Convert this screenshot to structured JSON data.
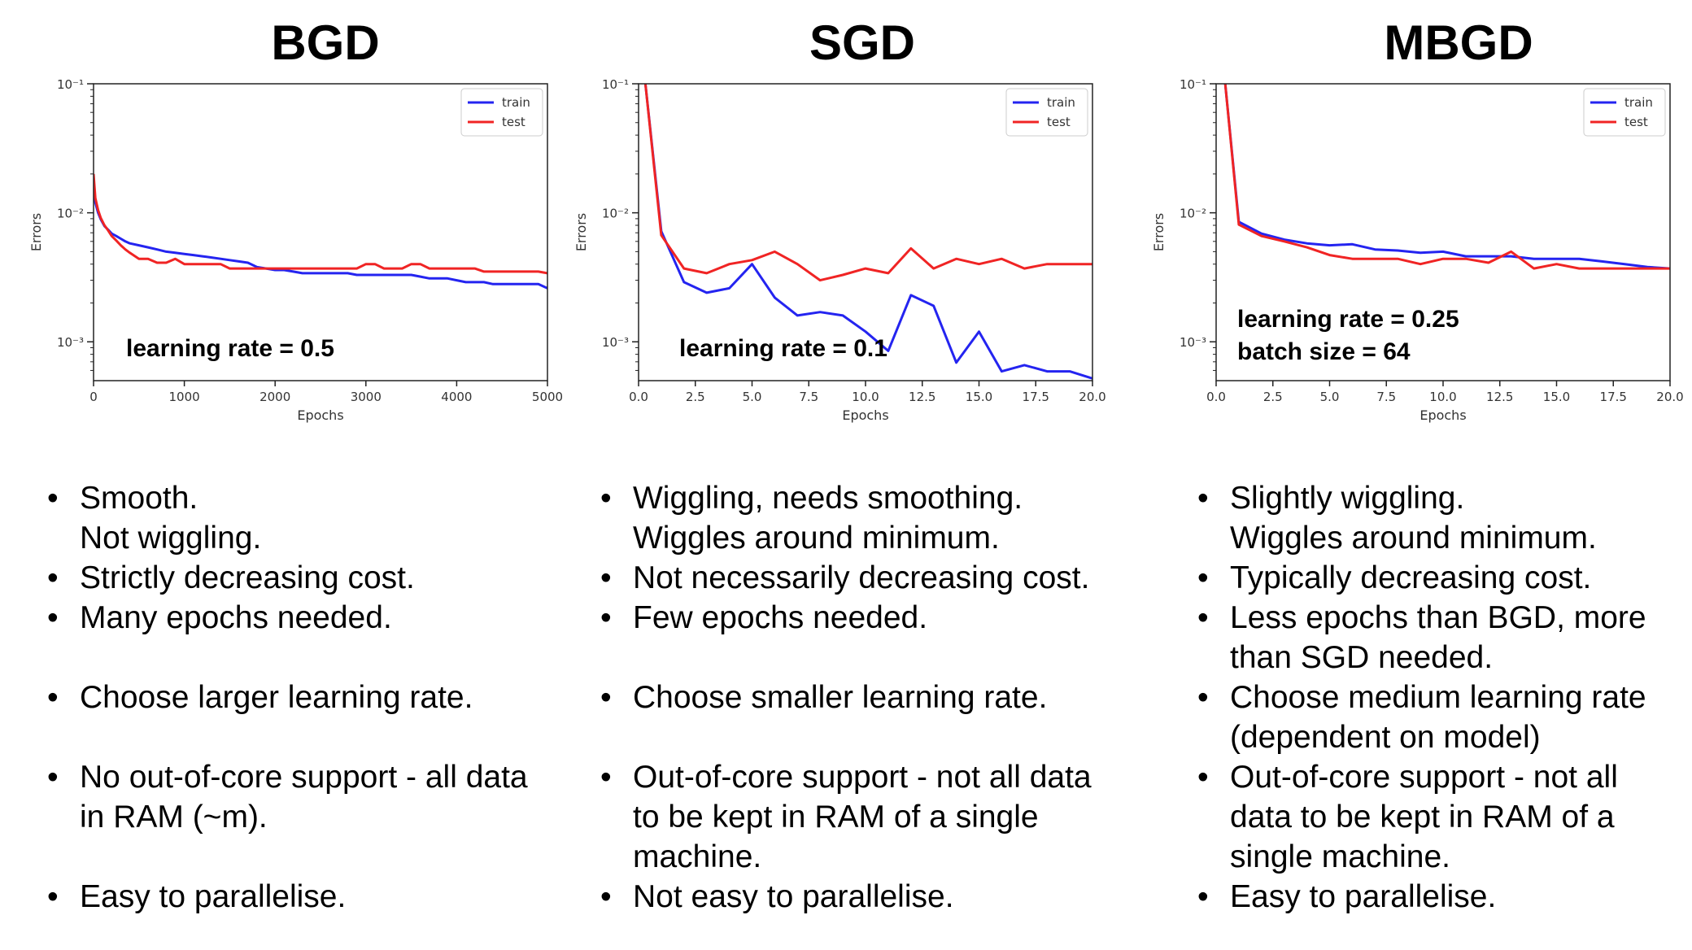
{
  "columns": [
    {
      "title": "BGD",
      "bullets": [
        {
          "lines": [
            "Smooth.",
            "Not wiggling."
          ]
        },
        {
          "lines": [
            "Strictly decreasing cost."
          ]
        },
        {
          "lines": [
            "Many epochs needed."
          ]
        },
        {
          "lines": [
            "Choose larger learning rate."
          ]
        },
        {
          "lines": [
            "No out-of-core support - all data",
            "in RAM (~m)."
          ]
        },
        {
          "lines": [
            "Easy to parallelise."
          ]
        }
      ]
    },
    {
      "title": "SGD",
      "bullets": [
        {
          "lines": [
            "Wiggling, needs smoothing.",
            "Wiggles around minimum."
          ]
        },
        {
          "lines": [
            "Not necessarily decreasing cost."
          ]
        },
        {
          "lines": [
            "Few epochs needed."
          ]
        },
        {
          "lines": [
            "Choose smaller learning rate."
          ]
        },
        {
          "lines": [
            "Out-of-core support - not all data",
            "to be kept in RAM of a single",
            "machine."
          ]
        },
        {
          "lines": [
            "Not easy to parallelise."
          ]
        }
      ]
    },
    {
      "title": "MBGD",
      "bullets": [
        {
          "lines": [
            "Slightly wiggling.",
            "Wiggles around minimum."
          ]
        },
        {
          "lines": [
            "Typically decreasing cost."
          ]
        },
        {
          "lines": [
            "Less epochs than BGD, more",
            "than SGD needed."
          ]
        },
        {
          "lines": [
            "Choose medium learning rate",
            "(dependent on model)"
          ]
        },
        {
          "lines": [
            "Out-of-core support - not all",
            "data to be kept in RAM of a",
            "single machine."
          ]
        },
        {
          "lines": [
            "Easy to parallelise."
          ]
        }
      ]
    }
  ],
  "chart_data": [
    {
      "type": "line",
      "xlabel": "Epochs",
      "ylabel": "Errors",
      "yscale": "log",
      "xlim": [
        0,
        5000
      ],
      "ylim": [
        0.0005,
        0.1
      ],
      "xticks": [
        0,
        1000,
        2000,
        3000,
        4000,
        5000
      ],
      "xtick_labels": [
        "0",
        "1000",
        "2000",
        "3000",
        "4000",
        "5000"
      ],
      "yticks": [
        0.001,
        0.01,
        0.1
      ],
      "ytick_labels": [
        "10⁻³",
        "10⁻²",
        "10⁻¹"
      ],
      "legend": "top-right",
      "annotations": [
        "learning rate = 0.5"
      ],
      "series": [
        {
          "name": "train",
          "color": "#2424f0",
          "x": [
            0,
            20,
            50,
            80,
            120,
            160,
            200,
            250,
            300,
            350,
            400,
            500,
            600,
            700,
            800,
            900,
            1000,
            1100,
            1200,
            1300,
            1400,
            1500,
            1600,
            1700,
            1800,
            1900,
            2000,
            2100,
            2200,
            2300,
            2400,
            2500,
            2600,
            2700,
            2800,
            2900,
            3000,
            3100,
            3200,
            3300,
            3400,
            3500,
            3600,
            3700,
            3800,
            3900,
            4000,
            4100,
            4200,
            4300,
            4400,
            4500,
            4600,
            4700,
            4800,
            4900,
            5000
          ],
          "y": [
            0.016,
            0.012,
            0.01,
            0.0089,
            0.0079,
            0.0074,
            0.0069,
            0.0066,
            0.0063,
            0.006,
            0.0058,
            0.0056,
            0.0054,
            0.0052,
            0.005,
            0.0049,
            0.0048,
            0.0047,
            0.0046,
            0.0045,
            0.0044,
            0.0043,
            0.0042,
            0.0041,
            0.0038,
            0.0037,
            0.0036,
            0.0036,
            0.0035,
            0.0034,
            0.0034,
            0.0034,
            0.0034,
            0.0034,
            0.0034,
            0.0033,
            0.0033,
            0.0033,
            0.0033,
            0.0033,
            0.0033,
            0.0033,
            0.0032,
            0.0031,
            0.0031,
            0.0031,
            0.003,
            0.0029,
            0.0029,
            0.0029,
            0.0028,
            0.0028,
            0.0028,
            0.0028,
            0.0028,
            0.0028,
            0.0026
          ]
        },
        {
          "name": "test",
          "color": "#f02424",
          "x": [
            0,
            20,
            50,
            80,
            120,
            160,
            200,
            250,
            300,
            350,
            400,
            500,
            600,
            700,
            800,
            900,
            1000,
            1100,
            1200,
            1300,
            1400,
            1500,
            1600,
            1700,
            1800,
            1900,
            2000,
            2100,
            2200,
            2300,
            2400,
            2500,
            2600,
            2700,
            2800,
            2900,
            3000,
            3100,
            3200,
            3300,
            3400,
            3500,
            3600,
            3700,
            3800,
            3900,
            4000,
            4100,
            4200,
            4300,
            4400,
            4500,
            4600,
            4700,
            4800,
            4900,
            5000
          ],
          "y": [
            0.02,
            0.013,
            0.0105,
            0.0091,
            0.008,
            0.0073,
            0.0066,
            0.0061,
            0.0056,
            0.0052,
            0.0049,
            0.0044,
            0.0044,
            0.0041,
            0.0041,
            0.0044,
            0.004,
            0.004,
            0.004,
            0.004,
            0.004,
            0.0037,
            0.0037,
            0.0037,
            0.0037,
            0.0037,
            0.0037,
            0.0037,
            0.0037,
            0.0037,
            0.0037,
            0.0037,
            0.0037,
            0.0037,
            0.0037,
            0.0037,
            0.004,
            0.004,
            0.0037,
            0.0037,
            0.0037,
            0.004,
            0.004,
            0.0037,
            0.0037,
            0.0037,
            0.0037,
            0.0037,
            0.0037,
            0.0035,
            0.0035,
            0.0035,
            0.0035,
            0.0035,
            0.0035,
            0.0035,
            0.0034
          ]
        }
      ]
    },
    {
      "type": "line",
      "xlabel": "Epochs",
      "ylabel": "Errors",
      "yscale": "log",
      "xlim": [
        0,
        20
      ],
      "ylim": [
        0.0005,
        0.1
      ],
      "xticks": [
        0,
        2.5,
        5,
        7.5,
        10,
        12.5,
        15,
        17.5,
        20
      ],
      "xtick_labels": [
        "0.0",
        "2.5",
        "5.0",
        "7.5",
        "10.0",
        "12.5",
        "15.0",
        "17.5",
        "20.0"
      ],
      "yticks": [
        0.001,
        0.01,
        0.1
      ],
      "ytick_labels": [
        "10⁻³",
        "10⁻²",
        "10⁻¹"
      ],
      "legend": "top-right",
      "annotations": [
        "learning rate = 0.1"
      ],
      "series": [
        {
          "name": "train",
          "color": "#2424f0",
          "x": [
            0.3,
            1,
            2,
            3,
            4,
            5,
            6,
            7,
            8,
            9,
            10,
            11,
            12,
            13,
            14,
            15,
            16,
            17,
            18,
            19,
            20
          ],
          "y": [
            0.1,
            0.0072,
            0.0029,
            0.0024,
            0.0026,
            0.004,
            0.0022,
            0.0016,
            0.0017,
            0.0016,
            0.0012,
            0.00085,
            0.0023,
            0.0019,
            0.00069,
            0.0012,
            0.00059,
            0.00066,
            0.00059,
            0.00059,
            0.00052
          ]
        },
        {
          "name": "test",
          "color": "#f02424",
          "x": [
            0.3,
            1,
            2,
            3,
            4,
            5,
            6,
            7,
            8,
            9,
            10,
            11,
            12,
            13,
            14,
            15,
            16,
            17,
            18,
            19,
            20
          ],
          "y": [
            0.1,
            0.0067,
            0.0037,
            0.0034,
            0.004,
            0.0043,
            0.005,
            0.004,
            0.003,
            0.0033,
            0.0037,
            0.0034,
            0.0053,
            0.0037,
            0.0044,
            0.004,
            0.0044,
            0.0037,
            0.004,
            0.004,
            0.004
          ]
        }
      ]
    },
    {
      "type": "line",
      "xlabel": "Epochs",
      "ylabel": "Errors",
      "yscale": "log",
      "xlim": [
        0,
        20
      ],
      "ylim": [
        0.0005,
        0.1
      ],
      "xticks": [
        0,
        2.5,
        5,
        7.5,
        10,
        12.5,
        15,
        17.5,
        20
      ],
      "xtick_labels": [
        "0.0",
        "2.5",
        "5.0",
        "7.5",
        "10.0",
        "12.5",
        "15.0",
        "17.5",
        "20.0"
      ],
      "yticks": [
        0.001,
        0.01,
        0.1
      ],
      "ytick_labels": [
        "10⁻³",
        "10⁻²",
        "10⁻¹"
      ],
      "legend": "top-right",
      "annotations": [
        "learning rate = 0.25",
        "batch size = 64"
      ],
      "series": [
        {
          "name": "train",
          "color": "#2424f0",
          "x": [
            0.4,
            1,
            2,
            3,
            4,
            5,
            6,
            7,
            8,
            9,
            10,
            11,
            12,
            13,
            14,
            15,
            16,
            17,
            18,
            19,
            20
          ],
          "y": [
            0.1,
            0.0085,
            0.0069,
            0.0062,
            0.0058,
            0.0056,
            0.0057,
            0.0052,
            0.0051,
            0.0049,
            0.005,
            0.0046,
            0.0046,
            0.0046,
            0.0044,
            0.0044,
            0.0044,
            0.0042,
            0.004,
            0.0038,
            0.0037
          ]
        },
        {
          "name": "test",
          "color": "#f02424",
          "x": [
            0.4,
            1,
            2,
            3,
            4,
            5,
            6,
            7,
            8,
            9,
            10,
            11,
            12,
            13,
            14,
            15,
            16,
            17,
            18,
            19,
            20
          ],
          "y": [
            0.1,
            0.0081,
            0.0066,
            0.006,
            0.0054,
            0.0047,
            0.0044,
            0.0044,
            0.0044,
            0.004,
            0.0044,
            0.0044,
            0.0041,
            0.005,
            0.0037,
            0.004,
            0.0037,
            0.0037,
            0.0037,
            0.0037,
            0.0037
          ]
        }
      ]
    }
  ]
}
